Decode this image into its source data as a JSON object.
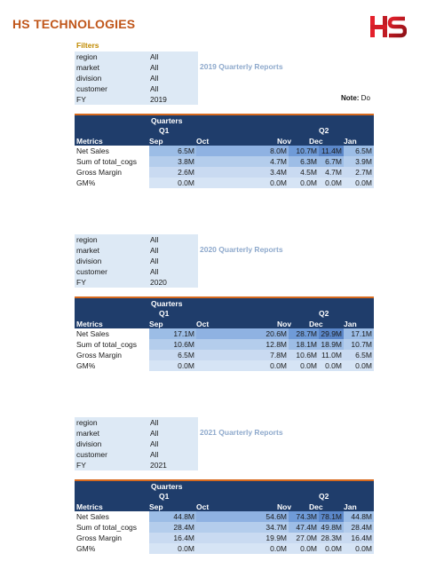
{
  "header": {
    "brand": "HS TECHNOLOGIES",
    "logo_text": "HS",
    "logo_icon": "hs-logo-icon"
  },
  "filters_label": "Filters",
  "note": {
    "bold": "Note:",
    "text": " Do"
  },
  "reports": [
    {
      "title": "2019 Quarterly Reports",
      "filters": [
        {
          "key": "region",
          "value": "All"
        },
        {
          "key": "market",
          "value": "All"
        },
        {
          "key": "division",
          "value": "All"
        },
        {
          "key": "customer",
          "value": "All"
        },
        {
          "key": "FY",
          "value": "2019"
        }
      ],
      "table": {
        "quarters_label": "Quarters",
        "q1_label": "Q1",
        "q2_label": "Q2",
        "metrics_label": "Metrics",
        "months": [
          "Sep",
          "Oct",
          "Nov",
          "Dec",
          "Jan"
        ],
        "rows": [
          {
            "metric": "Net Sales",
            "values": [
              "6.5M",
              "8.0M",
              "10.7M",
              "11.4M",
              "6.5M"
            ]
          },
          {
            "metric": "Sum of total_cogs",
            "values": [
              "3.8M",
              "4.7M",
              "6.3M",
              "6.7M",
              "3.9M"
            ]
          },
          {
            "metric": "Gross Margin",
            "values": [
              "2.6M",
              "3.4M",
              "4.5M",
              "4.7M",
              "2.7M"
            ]
          },
          {
            "metric": "GM%",
            "values": [
              "0.0M",
              "0.0M",
              "0.0M",
              "0.0M",
              "0.0M"
            ]
          }
        ]
      }
    },
    {
      "title": "2020 Quarterly Reports",
      "filters": [
        {
          "key": "region",
          "value": "All"
        },
        {
          "key": "market",
          "value": "All"
        },
        {
          "key": "division",
          "value": "All"
        },
        {
          "key": "customer",
          "value": "All"
        },
        {
          "key": "FY",
          "value": "2020"
        }
      ],
      "table": {
        "quarters_label": "Quarters",
        "q1_label": "Q1",
        "q2_label": "Q2",
        "metrics_label": "Metrics",
        "months": [
          "Sep",
          "Oct",
          "Nov",
          "Dec",
          "Jan"
        ],
        "rows": [
          {
            "metric": "Net Sales",
            "values": [
              "17.1M",
              "20.6M",
              "28.7M",
              "29.9M",
              "17.1M"
            ]
          },
          {
            "metric": "Sum of total_cogs",
            "values": [
              "10.6M",
              "12.8M",
              "18.1M",
              "18.9M",
              "10.7M"
            ]
          },
          {
            "metric": "Gross Margin",
            "values": [
              "6.5M",
              "7.8M",
              "10.6M",
              "11.0M",
              "6.5M"
            ]
          },
          {
            "metric": "GM%",
            "values": [
              "0.0M",
              "0.0M",
              "0.0M",
              "0.0M",
              "0.0M"
            ]
          }
        ]
      }
    },
    {
      "title": "2021 Quarterly Reports",
      "filters": [
        {
          "key": "region",
          "value": "All"
        },
        {
          "key": "market",
          "value": "All"
        },
        {
          "key": "division",
          "value": "All"
        },
        {
          "key": "customer",
          "value": "All"
        },
        {
          "key": "FY",
          "value": "2021"
        }
      ],
      "table": {
        "quarters_label": "Quarters",
        "q1_label": "Q1",
        "q2_label": "Q2",
        "metrics_label": "Metrics",
        "months": [
          "Sep",
          "Oct",
          "Nov",
          "Dec",
          "Jan"
        ],
        "rows": [
          {
            "metric": "Net Sales",
            "values": [
              "44.8M",
              "54.6M",
              "74.3M",
              "78.1M",
              "44.8M"
            ]
          },
          {
            "metric": "Sum of total_cogs",
            "values": [
              "28.4M",
              "34.7M",
              "47.4M",
              "49.8M",
              "28.4M"
            ]
          },
          {
            "metric": "Gross Margin",
            "values": [
              "16.4M",
              "19.9M",
              "27.0M",
              "28.3M",
              "16.4M"
            ]
          },
          {
            "metric": "GM%",
            "values": [
              "0.0M",
              "0.0M",
              "0.0M",
              "0.0M",
              "0.0M"
            ]
          }
        ]
      }
    }
  ]
}
